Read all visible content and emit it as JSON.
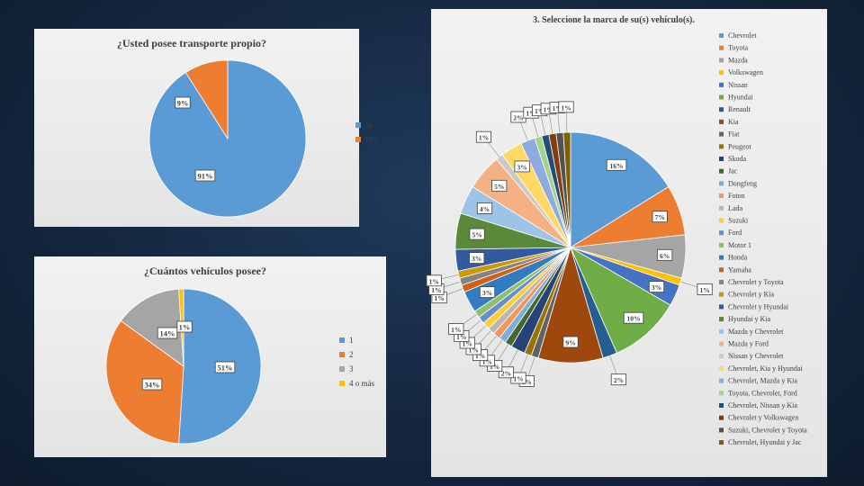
{
  "chart_data": [
    {
      "type": "pie",
      "title": "¿Usted posee transporte propio?",
      "categories": [
        "SI",
        "NO"
      ],
      "values": [
        91,
        9
      ],
      "labels": [
        "91%",
        "9%"
      ],
      "colors": [
        "#5b9bd5",
        "#ed7d31"
      ],
      "legend": "right"
    },
    {
      "type": "pie",
      "title": "¿Cuántos vehículos posee?",
      "categories": [
        "1",
        "2",
        "3",
        "4 o más"
      ],
      "values": [
        51,
        34,
        14,
        1
      ],
      "labels": [
        "51%",
        "34%",
        "14%",
        "1%"
      ],
      "colors": [
        "#5b9bd5",
        "#ed7d31",
        "#a5a5a5",
        "#ffc000"
      ],
      "legend": "right"
    },
    {
      "type": "pie",
      "title": "3. Seleccione la marca de su(s) vehículo(s).",
      "legend": "right",
      "categories": [
        "Chevrolet",
        "Toyota",
        "Mazda",
        "Volkswagen",
        "Nissan",
        "Hyundai",
        "Renault",
        "Kia",
        "Fiat",
        "Peugeot",
        "Skoda",
        "Jac",
        "Dongfeng",
        "Foton",
        "Lada",
        "Suzuki",
        "Ford",
        "Motor 1",
        "Honda",
        "Yamaha",
        "Chevrolet y Toyota",
        "Chevrolet y Kia",
        "Chevrolet y Hyundai",
        "Hyundai y Kia",
        "Mazda y Chevrolet",
        "Mazda y Ford",
        "Nissan y Chevrolet",
        "Chevrolet, Kia y Hyundai",
        "Chevrolet, Mazda y Kia",
        "Toyota, Chevrolet, Ford",
        "Chevrolet, Nissan y Kia",
        "Chevrolet y Volkswagen",
        "Suzuki, Chevrolet y Toyota",
        "Chevrolet, Hyundai y Jac"
      ],
      "values": [
        16,
        7,
        6,
        1,
        3,
        10,
        2,
        9,
        1,
        1,
        2,
        1,
        1,
        1,
        1,
        1,
        1,
        1,
        3,
        1,
        1,
        1,
        3,
        5,
        4,
        5,
        1,
        3,
        2,
        1,
        1,
        1,
        1,
        1
      ],
      "labels": [
        "16%",
        "7%",
        "6%",
        "1%",
        "3%",
        "10%",
        "2%",
        "9%",
        "1%",
        "1%",
        "2%",
        "1%",
        "1%",
        "1%",
        "1%",
        "1%",
        "1%",
        "1%",
        "3%",
        "1%",
        "1%",
        "1%",
        "3%",
        "5%",
        "4%",
        "5%",
        "1%",
        "3%",
        "2%",
        "1%",
        "1%",
        "1%",
        "1%",
        "1%"
      ],
      "colors": [
        "#5b9bd5",
        "#ed7d31",
        "#a5a5a5",
        "#ffc000",
        "#4472c4",
        "#70ad47",
        "#255e91",
        "#9e480e",
        "#636363",
        "#997300",
        "#264478",
        "#43682b",
        "#7cafdd",
        "#f1975a",
        "#b7b7b7",
        "#ffcd33",
        "#698ed0",
        "#8cc168",
        "#327dc2",
        "#d26012",
        "#848484",
        "#cc9a00",
        "#335aa1",
        "#5a8a39",
        "#9dc3e6",
        "#f4b183",
        "#c9c9c9",
        "#ffd966",
        "#8faadc",
        "#a9d18e",
        "#1f4e79",
        "#843c0c",
        "#525252",
        "#7f6000"
      ]
    }
  ]
}
